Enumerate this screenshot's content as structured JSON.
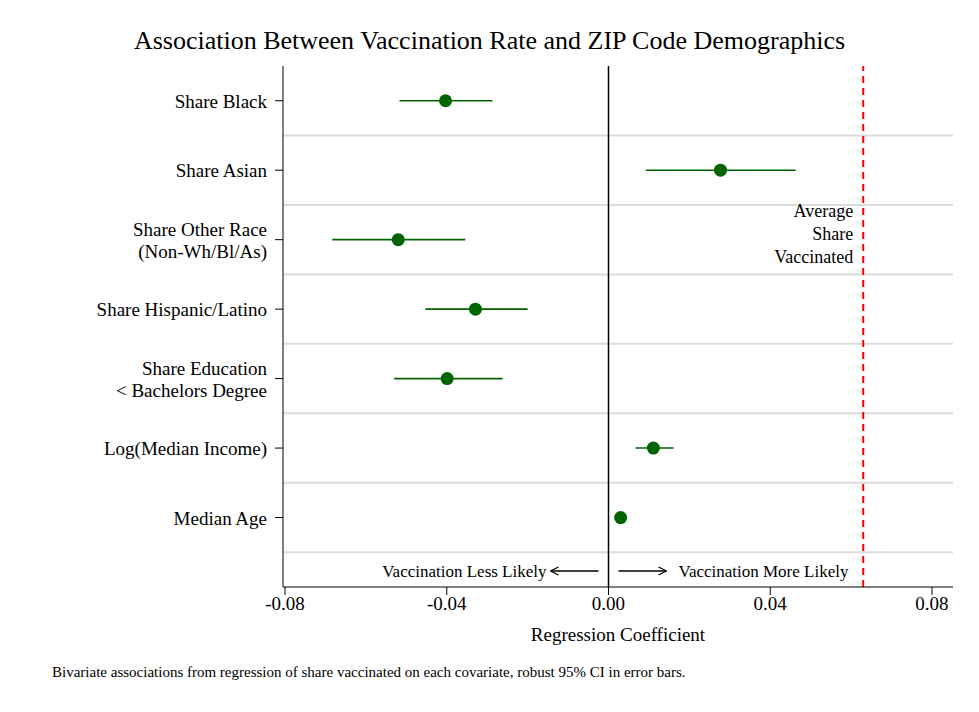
{
  "chart_data": {
    "type": "scatter",
    "title": "Association Between Vaccination Rate and ZIP Code Demographics",
    "categories": [
      "Share Black",
      "Share Asian",
      "Share Other Race\n(Non-Wh/Bl/As)",
      "Share Hispanic/Latino",
      "Share Education\n< Bachelors Degree",
      "Log(Median Income)",
      "Median Age"
    ],
    "values": [
      -0.0403,
      0.0277,
      -0.052,
      -0.0329,
      -0.0399,
      0.0111,
      0.003
    ],
    "ci_low": [
      -0.0517,
      0.0092,
      -0.0683,
      -0.0453,
      -0.053,
      0.0067,
      0.0025
    ],
    "ci_high": [
      -0.0287,
      0.0463,
      -0.0354,
      -0.02,
      -0.0262,
      0.0161,
      0.0035
    ],
    "color": "#006400",
    "marker": "circle",
    "x_label": "Regression Coefficient",
    "xlim": [
      -0.0805,
      0.0852
    ],
    "xticks": [
      -0.08,
      -0.04,
      {
        "value": 0,
        "label": "0.00"
      },
      0.04,
      0.08
    ],
    "grid": true,
    "reference_lines": [
      {
        "value": 0,
        "color": "#000000",
        "line_style": "solid"
      },
      {
        "value": 0.063,
        "label": "Average Share Vaccinated",
        "color": "#ff0000",
        "line_style": "dashed"
      }
    ],
    "annotations": {
      "left": "Vaccination Less Likely",
      "right": "Vaccination More Likely"
    },
    "footnote": "Bivariate associations from regression of share vaccinated on each covariate, robust 95% CI in error bars."
  }
}
